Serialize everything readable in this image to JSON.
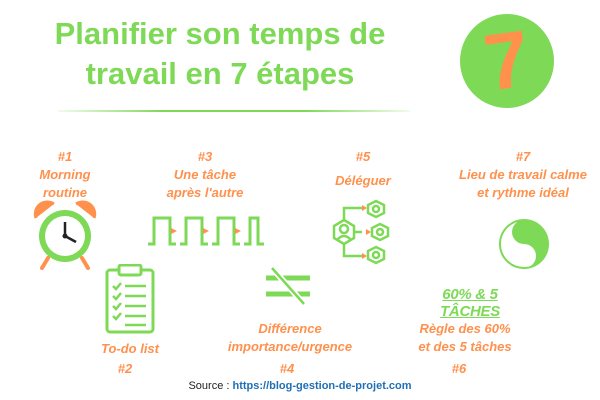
{
  "title_line1": "Planifier son temps de",
  "title_line2": "travail en 7 étapes",
  "badge_number": "7",
  "steps": [
    {
      "num": "#1",
      "label_line1": "Morning",
      "label_line2": "routine",
      "icon": "alarm-clock-icon"
    },
    {
      "num": "#2",
      "label_line1": "To-do list",
      "label_line2": "",
      "icon": "clipboard-checklist-icon"
    },
    {
      "num": "#3",
      "label_line1": "Une tâche",
      "label_line2": "après l'autre",
      "icon": "sequential-tasks-icon"
    },
    {
      "num": "#4",
      "label_line1": "Différence",
      "label_line2": "importance/urgence",
      "icon": "not-equal-icon"
    },
    {
      "num": "#5",
      "label_line1": "Déléguer",
      "label_line2": "",
      "icon": "delegate-network-icon"
    },
    {
      "num": "#6",
      "label_line1": "Règle des 60%",
      "label_line2": "et des 5 tâches",
      "icon_text": "60% & 5 TÂCHES"
    },
    {
      "num": "#7",
      "label_line1": "Lieu de travail calme",
      "label_line2": "et rythme idéal",
      "icon": "yin-yang-icon"
    }
  ],
  "source_prefix": "Source : ",
  "source_link": "https://blog-gestion-de-projet.com",
  "colors": {
    "green": "#7ed957",
    "orange": "#ff914d",
    "link": "#1f6fb5"
  }
}
